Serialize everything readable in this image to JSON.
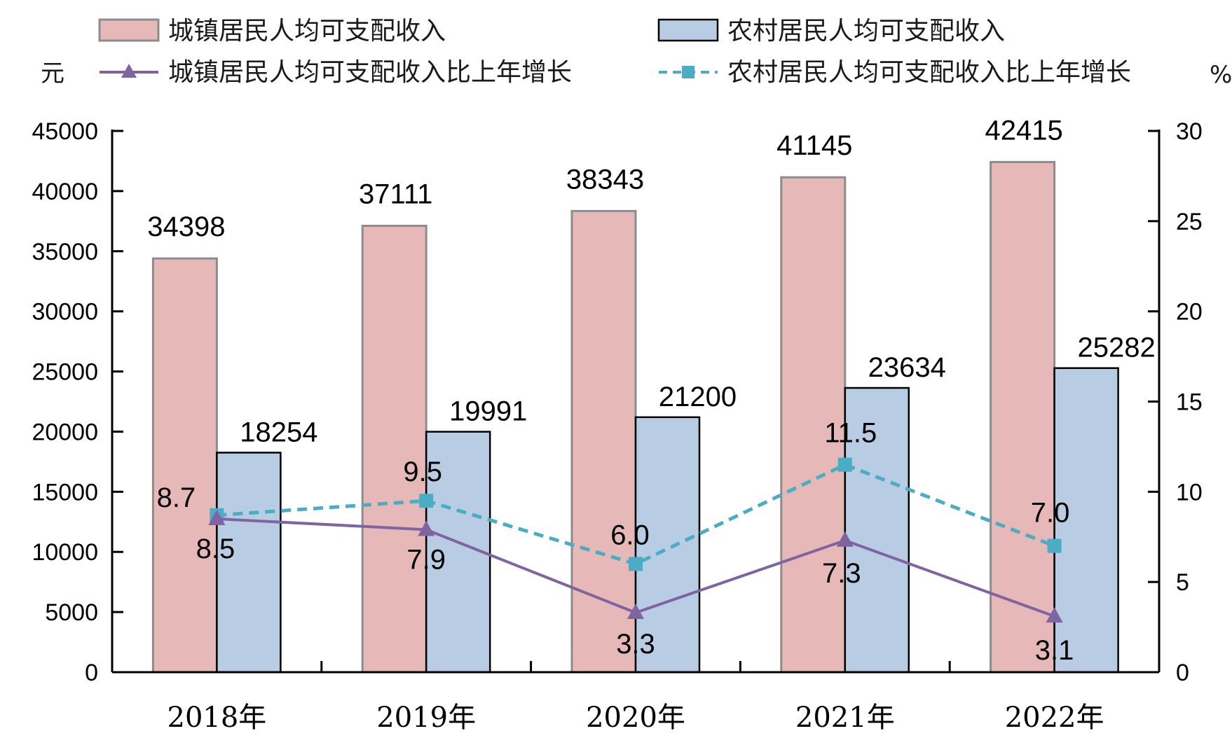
{
  "chart_data": {
    "type": "bar",
    "categories": [
      "2018年",
      "2019年",
      "2020年",
      "2021年",
      "2022年"
    ],
    "left_unit": "元",
    "right_unit": "%",
    "ylim_left": [
      0,
      45000
    ],
    "yticks_left": [
      "0",
      "5000",
      "10000",
      "15000",
      "20000",
      "25000",
      "30000",
      "35000",
      "40000",
      "45000"
    ],
    "ylim_right": [
      0,
      30
    ],
    "yticks_right": [
      "0",
      "5",
      "10",
      "15",
      "20",
      "25",
      "30"
    ],
    "series": [
      {
        "name": "城镇居民人均可支配收入",
        "type": "bar",
        "axis": "left",
        "values": [
          34398,
          37111,
          38343,
          41145,
          42415
        ],
        "labels": [
          "34398",
          "37111",
          "38343",
          "41145",
          "42415"
        ],
        "color": "#e6b8b7",
        "border": "#8c8c8c"
      },
      {
        "name": "农村居民人均可支配收入",
        "type": "bar",
        "axis": "left",
        "values": [
          18254,
          19991,
          21200,
          23634,
          25282
        ],
        "labels": [
          "18254",
          "19991",
          "21200",
          "23634",
          "25282"
        ],
        "color": "#b8cce4",
        "border": "#000000"
      },
      {
        "name": "城镇居民人均可支配收入比上年增长",
        "type": "line",
        "axis": "right",
        "marker": "triangle",
        "values": [
          8.5,
          7.9,
          3.3,
          7.3,
          3.1
        ],
        "labels": [
          "8.5",
          "7.9",
          "3.3",
          "7.3",
          "3.1"
        ],
        "color": "#8064a2"
      },
      {
        "name": "农村居民人均可支配收入比上年增长",
        "type": "line",
        "axis": "right",
        "marker": "square",
        "dashed": true,
        "values": [
          8.7,
          9.5,
          6.0,
          11.5,
          7.0
        ],
        "labels": [
          "8.7",
          "9.5",
          "6.0",
          "11.5",
          "7.0"
        ],
        "color": "#4bacc6"
      }
    ],
    "grid": false,
    "legend": "top"
  }
}
